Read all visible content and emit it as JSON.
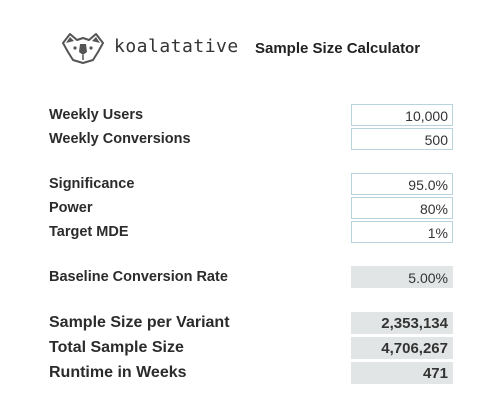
{
  "header": {
    "logo_icon": "koala-icon",
    "brand": "koalatative",
    "title": "Sample Size Calculator"
  },
  "inputs": {
    "weekly_users": {
      "label": "Weekly Users",
      "value": "10,000"
    },
    "weekly_conversions": {
      "label": "Weekly Conversions",
      "value": "500"
    },
    "significance": {
      "label": "Significance",
      "value": "95.0%"
    },
    "power": {
      "label": "Power",
      "value": "80%"
    },
    "target_mde": {
      "label": "Target MDE",
      "value": "1%"
    }
  },
  "computed": {
    "baseline_rate": {
      "label": "Baseline Conversion Rate",
      "value": "5.00%"
    }
  },
  "results": {
    "sample_per_variant": {
      "label": "Sample Size per Variant",
      "value": "2,353,134"
    },
    "total_sample": {
      "label": "Total Sample Size",
      "value": "4,706,267"
    },
    "runtime_weeks": {
      "label": "Runtime in Weeks",
      "value": "471"
    }
  },
  "colors": {
    "input_border": "#b9d3dc",
    "readonly_background": "#e1e5e5"
  }
}
